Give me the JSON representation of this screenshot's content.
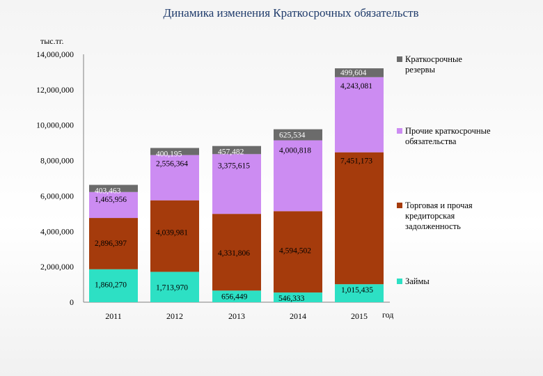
{
  "chart_data": {
    "type": "bar",
    "stacked": true,
    "title": "Динамика изменения Краткосрочных  обязательств",
    "ylabel": "тыс.тг.",
    "xlabel": "год",
    "categories": [
      "2011",
      "2012",
      "2013",
      "2014",
      "2015"
    ],
    "ylim": [
      0,
      14000000
    ],
    "yticks": [
      "0",
      "2,000,000",
      "4,000,000",
      "6,000,000",
      "8,000,000",
      "10,000,000",
      "12,000,000",
      "14,000,000"
    ],
    "grid": false,
    "legend_position": "right",
    "series": [
      {
        "name": "Займы",
        "color": "#2de0c4",
        "values": [
          1860270,
          1713970,
          656449,
          546333,
          1015435
        ],
        "labels": [
          "1,860,270",
          "1,713,970",
          "656,449",
          "546,333",
          "1,015,435"
        ]
      },
      {
        "name": "Торговая и прочая кредиторская задолженность",
        "color": "#a53b0c",
        "values": [
          2896397,
          4039981,
          4331806,
          4594502,
          7451173
        ],
        "labels": [
          "2,896,397",
          "4,039,981",
          "4,331,806",
          "4,594,502",
          "7,451,173"
        ]
      },
      {
        "name": "Прочие краткосрочные обязательства",
        "color": "#cc8cf2",
        "values": [
          1465956,
          2556364,
          3375615,
          4000818,
          4243081
        ],
        "labels": [
          "1,465,956",
          "2,556,364",
          "3,375,615",
          "4,000,818",
          "4,243,081"
        ]
      },
      {
        "name": "Краткосрочные резервы",
        "color": "#6b6b6b",
        "values": [
          403463,
          400195,
          457482,
          625534,
          499604
        ],
        "labels": [
          "403,463",
          "400,195",
          "457,482",
          "625,534",
          "499,604"
        ]
      }
    ]
  }
}
